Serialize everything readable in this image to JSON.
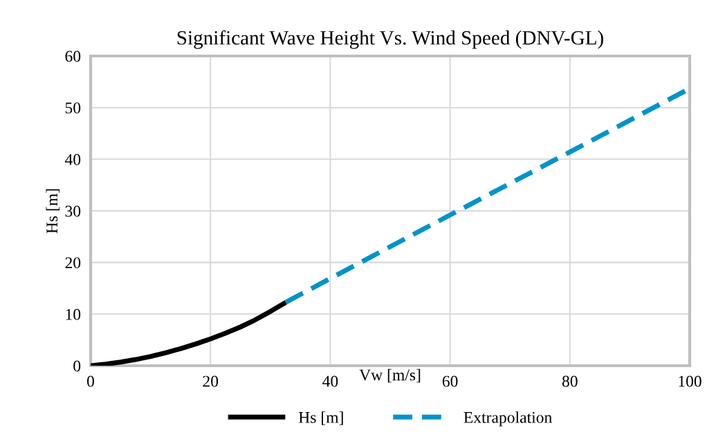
{
  "chart_data": {
    "type": "line",
    "title": "Significant Wave Height Vs. Wind Speed (DNV-GL)",
    "xlabel": "Vw [m/s]",
    "ylabel": "Hs [m]",
    "series": [
      {
        "name": "Hs [m]",
        "color": "#000000",
        "line_style": "solid",
        "x": [
          0,
          2.5,
          5,
          7.5,
          10,
          12.5,
          15,
          17.5,
          20,
          22.5,
          25,
          27.5,
          30,
          32.6
        ],
        "values": [
          0,
          0.3,
          0.7,
          1.2,
          1.8,
          2.5,
          3.3,
          4.2,
          5.2,
          6.3,
          7.5,
          8.9,
          10.5,
          12.3
        ]
      },
      {
        "name": "Extrapolation",
        "color": "#0094c8",
        "line_style": "dashed",
        "x": [
          32.6,
          40,
          60,
          80,
          100
        ],
        "values": [
          12.3,
          16.9,
          29.2,
          41.4,
          53.7
        ]
      }
    ],
    "xlim": [
      0,
      100
    ],
    "xticks": [
      0,
      20,
      40,
      60,
      80,
      100
    ],
    "ylim": [
      0,
      60
    ],
    "yticks": [
      0,
      10,
      20,
      30,
      40,
      50,
      60
    ],
    "grid": true,
    "legend": "bottom",
    "marker": "none"
  }
}
